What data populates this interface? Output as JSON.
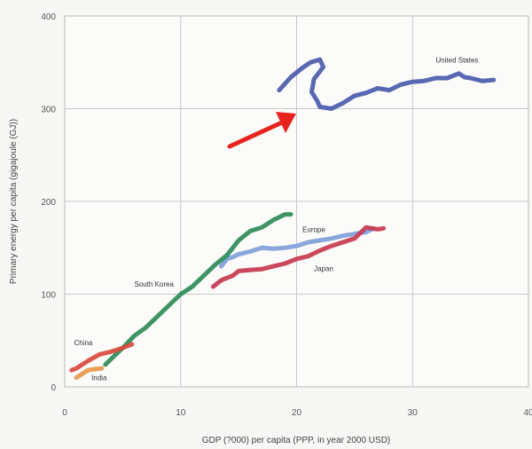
{
  "chart_data": {
    "type": "line",
    "xlabel": "GDP (?000) per capita (PPP, in year 2000 USD)",
    "ylabel": "Primary energy per capita (gigajoule (GJ))",
    "xlim": [
      0,
      40
    ],
    "ylim": [
      0,
      400
    ],
    "x_ticks": [
      "0",
      "10",
      "20",
      "30",
      "40"
    ],
    "y_ticks": [
      "0",
      "100",
      "200",
      "300",
      "400"
    ],
    "grid": true,
    "series": [
      {
        "name": "United States",
        "color": "#4a5bab",
        "points": [
          [
            18.5,
            320
          ],
          [
            19.5,
            334
          ],
          [
            20.5,
            344
          ],
          [
            21.2,
            350
          ],
          [
            22.0,
            353
          ],
          [
            22.3,
            345
          ],
          [
            21.5,
            332
          ],
          [
            21.3,
            318
          ],
          [
            21.8,
            308
          ],
          [
            22.0,
            302
          ],
          [
            23.0,
            300
          ],
          [
            24.0,
            306
          ],
          [
            25.0,
            314
          ],
          [
            26.0,
            317
          ],
          [
            27.0,
            322
          ],
          [
            28.0,
            320
          ],
          [
            29.0,
            326
          ],
          [
            30.0,
            329
          ],
          [
            31.0,
            330
          ],
          [
            32.0,
            333
          ],
          [
            33.0,
            333
          ],
          [
            34.0,
            338
          ],
          [
            34.5,
            334
          ],
          [
            35.0,
            333
          ],
          [
            36.0,
            330
          ],
          [
            37.0,
            331
          ]
        ]
      },
      {
        "name": "Europe",
        "color": "#7fa0d8",
        "points": [
          [
            13.5,
            130
          ],
          [
            14.0,
            138
          ],
          [
            14.5,
            140
          ],
          [
            15.0,
            143
          ],
          [
            16.0,
            146
          ],
          [
            17.0,
            150
          ],
          [
            18.0,
            149
          ],
          [
            19.0,
            150
          ],
          [
            20.0,
            152
          ],
          [
            21.0,
            156
          ],
          [
            22.0,
            158
          ],
          [
            23.0,
            160
          ],
          [
            24.0,
            163
          ],
          [
            25.0,
            165
          ],
          [
            26.0,
            167
          ],
          [
            26.5,
            170
          ]
        ]
      },
      {
        "name": "Japan",
        "color": "#c73a4e",
        "points": [
          [
            12.8,
            108
          ],
          [
            13.5,
            115
          ],
          [
            14.5,
            120
          ],
          [
            15.0,
            125
          ],
          [
            16.0,
            126
          ],
          [
            17.0,
            127
          ],
          [
            18.0,
            130
          ],
          [
            19.0,
            133
          ],
          [
            20.0,
            138
          ],
          [
            21.0,
            141
          ],
          [
            22.0,
            147
          ],
          [
            23.0,
            152
          ],
          [
            24.0,
            156
          ],
          [
            25.0,
            160
          ],
          [
            25.5,
            166
          ],
          [
            26.0,
            172
          ],
          [
            27.0,
            170
          ],
          [
            27.5,
            171
          ]
        ]
      },
      {
        "name": "South Korea",
        "color": "#2e8b57",
        "points": [
          [
            3.5,
            24
          ],
          [
            4.0,
            30
          ],
          [
            5.0,
            42
          ],
          [
            6.0,
            55
          ],
          [
            7.0,
            64
          ],
          [
            8.0,
            76
          ],
          [
            9.0,
            88
          ],
          [
            10.0,
            100
          ],
          [
            11.0,
            108
          ],
          [
            12.0,
            120
          ],
          [
            13.0,
            132
          ],
          [
            14.0,
            142
          ],
          [
            15.0,
            158
          ],
          [
            16.0,
            168
          ],
          [
            17.0,
            172
          ],
          [
            18.0,
            180
          ],
          [
            19.0,
            186
          ],
          [
            19.5,
            186
          ]
        ]
      },
      {
        "name": "China",
        "color": "#d94a3d",
        "points": [
          [
            0.6,
            18
          ],
          [
            1.0,
            20
          ],
          [
            2.0,
            28
          ],
          [
            3.0,
            35
          ],
          [
            4.0,
            38
          ],
          [
            5.0,
            42
          ],
          [
            5.8,
            46
          ]
        ]
      },
      {
        "name": "India",
        "color": "#e8984a",
        "points": [
          [
            1.0,
            10
          ],
          [
            1.5,
            14
          ],
          [
            2.0,
            18
          ],
          [
            2.5,
            19
          ],
          [
            3.2,
            20
          ]
        ]
      }
    ]
  }
}
